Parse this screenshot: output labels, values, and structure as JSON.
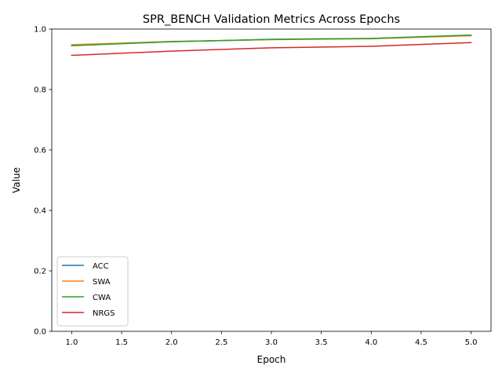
{
  "chart_data": {
    "type": "line",
    "title": "SPR_BENCH Validation Metrics Across Epochs",
    "xlabel": "Epoch",
    "ylabel": "Value",
    "xlim": [
      0.8,
      5.2
    ],
    "ylim": [
      0,
      1
    ],
    "xticks": [
      "1.0",
      "1.5",
      "2.0",
      "2.5",
      "3.0",
      "3.5",
      "4.0",
      "4.5",
      "5.0"
    ],
    "yticks": [
      "0.0",
      "0.2",
      "0.4",
      "0.6",
      "0.8",
      "1.0"
    ],
    "grid": false,
    "legend_position": "lower-left",
    "x": [
      1,
      2,
      3,
      4,
      5
    ],
    "series": [
      {
        "name": "ACC",
        "color": "#1f77b4",
        "values": [
          0.946,
          0.958,
          0.966,
          0.969,
          0.979
        ]
      },
      {
        "name": "SWA",
        "color": "#ff7f0e",
        "values": [
          0.948,
          0.959,
          0.965,
          0.968,
          0.978
        ]
      },
      {
        "name": "CWA",
        "color": "#2ca02c",
        "values": [
          0.945,
          0.958,
          0.966,
          0.969,
          0.98
        ]
      },
      {
        "name": "NRGS",
        "color": "#d62728",
        "values": [
          0.913,
          0.927,
          0.938,
          0.943,
          0.955
        ]
      }
    ]
  }
}
